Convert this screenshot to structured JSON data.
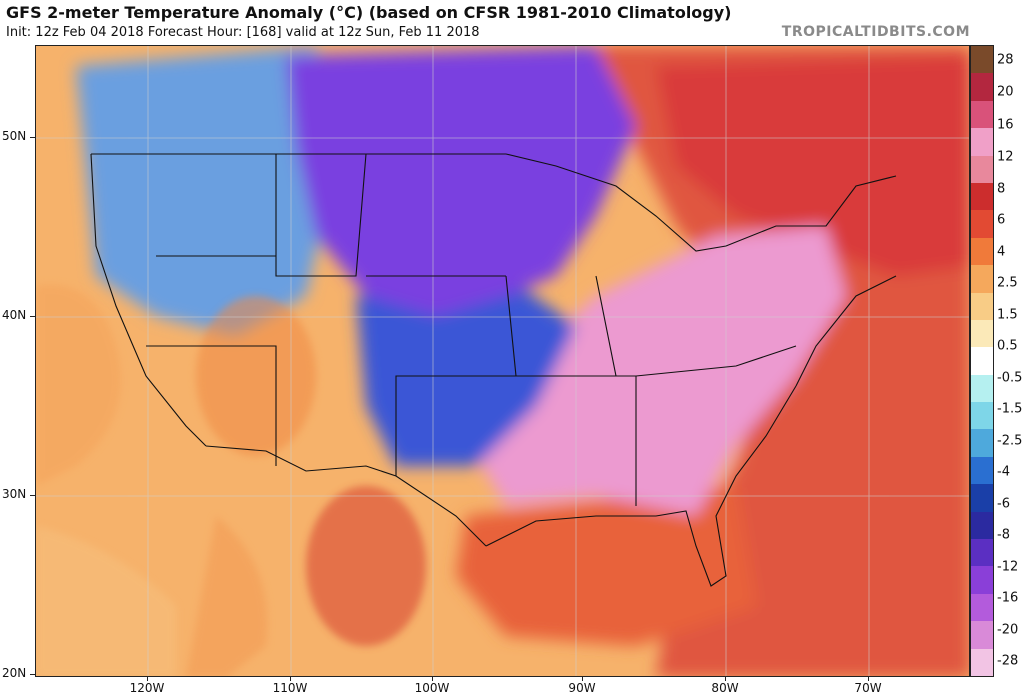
{
  "header": {
    "title": "GFS 2-meter Temperature Anomaly (°C) (based on CFSR 1981-2010 Climatology)",
    "subtitle": "Init: 12z Feb 04 2018   Forecast Hour: [168]   valid at 12z Sun, Feb 11 2018",
    "brand": "TROPICALTIDBITS.COM"
  },
  "map": {
    "latitude_labels": [
      "50N",
      "40N",
      "30N",
      "20N"
    ],
    "longitude_labels": [
      "120W",
      "110W",
      "100W",
      "90W",
      "80W",
      "70W"
    ],
    "regions": [
      {
        "name": "pacific-ocean-anomaly",
        "color": "#f6b26b"
      },
      {
        "name": "northwest-cold-anomaly",
        "color": "#6a9fe0"
      },
      {
        "name": "northern-plains-extreme-cold",
        "color": "#7a3fe0"
      },
      {
        "name": "southern-plains-cold",
        "color": "#3a57d6"
      },
      {
        "name": "southeast-warm-anomaly",
        "color": "#ec9ad0"
      },
      {
        "name": "atlantic-warm-anomaly",
        "color": "#e0573f"
      },
      {
        "name": "gulf-warm-anomaly",
        "color": "#e8623a"
      },
      {
        "name": "eastern-canada-warm",
        "color": "#d93b3b"
      }
    ]
  },
  "colorbar": {
    "labels": [
      "28",
      "20",
      "16",
      "12",
      "8",
      "6",
      "4",
      "2.5",
      "1.5",
      "0.5",
      "-0.5",
      "-1.5",
      "-2.5",
      "-4",
      "-6",
      "-8",
      "-12",
      "-16",
      "-20",
      "-28"
    ],
    "segments": [
      "#7a4a2a",
      "#b3273f",
      "#d9527a",
      "#f0a0c8",
      "#e8889c",
      "#cc2d2d",
      "#e24a33",
      "#f07a3a",
      "#f5a85c",
      "#f8cc86",
      "#fbe9b8",
      "#ffffff",
      "#b5f0f0",
      "#7ed6e8",
      "#4ea9dc",
      "#2a6fd1",
      "#1a3fa8",
      "#2b2aa0",
      "#5b2fc2",
      "#8a3fd8",
      "#b35bdc",
      "#d98ad8",
      "#f2c4e4"
    ]
  }
}
